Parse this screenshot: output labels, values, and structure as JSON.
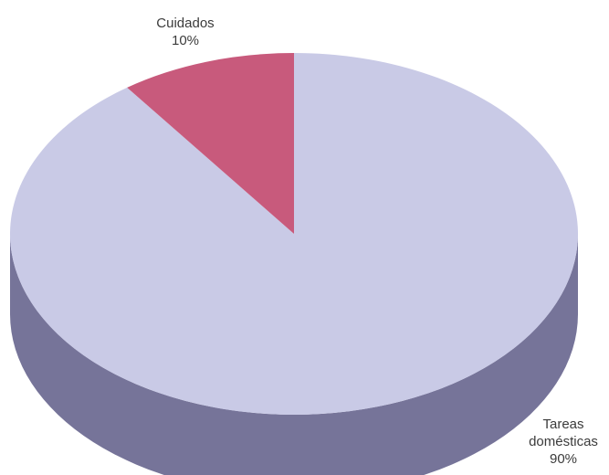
{
  "chart_data": {
    "type": "pie",
    "title": "",
    "slices": [
      {
        "label": "Tareas domésticas",
        "label_lines": [
          "Tareas",
          "domésticas"
        ],
        "pct_text": "90%",
        "value": 90,
        "color": "#c9cae6",
        "side_color": "#767499"
      },
      {
        "label": "Cuidados",
        "label_lines": [
          "Cuidados"
        ],
        "pct_text": "10%",
        "value": 10,
        "color": "#c85a7c",
        "side_color": "#8a3d57"
      }
    ],
    "legend": "none",
    "style": "3d-tilted"
  }
}
